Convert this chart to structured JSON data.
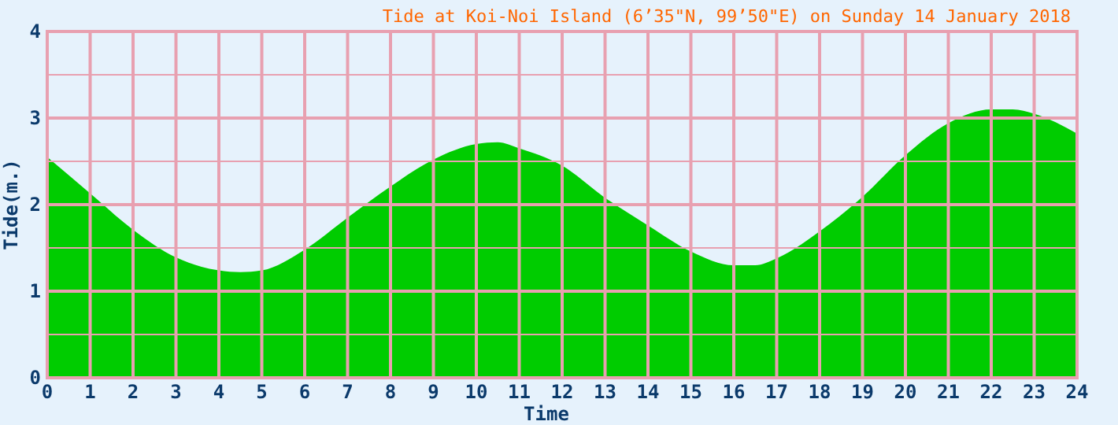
{
  "chart_data": {
    "type": "area",
    "title": "Tide at Koi-Noi Island (6’35\"N, 99’50\"E) on Sunday 14 January 2018",
    "xlabel": "Time",
    "ylabel": "Tide(m.)",
    "x": [
      0,
      1,
      2,
      3,
      4,
      4.5,
      5,
      6,
      7,
      8,
      9,
      10,
      10.5,
      11,
      12,
      13,
      14,
      15,
      16,
      16.5,
      17,
      18,
      19,
      20,
      21,
      22,
      22.5,
      23,
      24
    ],
    "series": [
      {
        "color": "#00cc00",
        "values": [
          2.55,
          2.13,
          1.71,
          1.39,
          1.24,
          1.22,
          1.24,
          1.48,
          1.85,
          2.21,
          2.52,
          2.7,
          2.72,
          2.65,
          2.45,
          2.08,
          1.76,
          1.46,
          1.3,
          1.3,
          1.38,
          1.69,
          2.09,
          2.57,
          2.94,
          3.1,
          3.1,
          3.05,
          2.82
        ]
      }
    ],
    "xlim": [
      0,
      24
    ],
    "xticks": [
      0,
      1,
      2,
      3,
      4,
      5,
      6,
      7,
      8,
      9,
      10,
      11,
      12,
      13,
      14,
      15,
      16,
      17,
      18,
      19,
      20,
      21,
      22,
      23,
      24
    ],
    "ylim": [
      0,
      4
    ],
    "yticks": [
      0,
      {
        "value": 0.5,
        "label": null
      },
      1,
      {
        "value": 1.5,
        "label": null
      },
      2,
      {
        "value": 2.5,
        "label": null
      },
      3,
      {
        "value": 3.5,
        "label": null
      },
      4
    ],
    "grid": true
  }
}
